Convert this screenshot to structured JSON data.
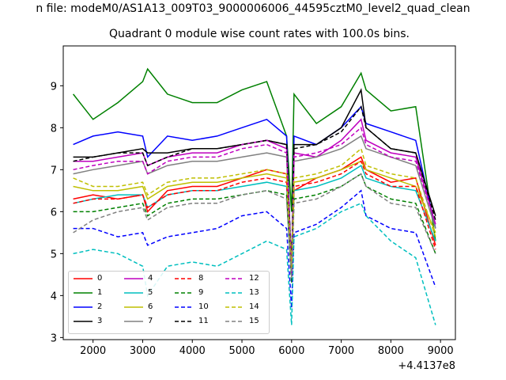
{
  "figure": {
    "suptitle": "n file: modeM0/AS1A13_009T03_9000006006_44595cztM0_level2_quad_clean",
    "title": "Quadrant 0 module wise count rates with 100.0s bins."
  },
  "chart_data": {
    "type": "line",
    "title": "Quadrant 0 module wise count rates with 100.0s bins.",
    "xlabel": "",
    "ylabel": "",
    "x_offset_label": "+4.4137e8",
    "xlim": [
      1400,
      9300
    ],
    "ylim": [
      2.95,
      9.95
    ],
    "xticks": [
      2000,
      3000,
      4000,
      5000,
      6000,
      7000,
      8000,
      9000
    ],
    "yticks": [
      3,
      4,
      5,
      6,
      7,
      8,
      9
    ],
    "x": [
      1600,
      2000,
      2500,
      3000,
      3100,
      3500,
      4000,
      4500,
      5000,
      5500,
      5900,
      6000,
      6050,
      6500,
      7000,
      7400,
      7500,
      8000,
      8500,
      8900
    ],
    "legend_ncol": 4,
    "legend_loc": "lower left",
    "series": [
      {
        "name": "0",
        "color": "#ff0000",
        "dash": "solid",
        "values": [
          6.3,
          6.4,
          6.3,
          6.4,
          6.0,
          6.5,
          6.6,
          6.6,
          6.8,
          7.0,
          6.9,
          4.8,
          6.5,
          6.8,
          7.0,
          7.3,
          7.0,
          6.7,
          6.8,
          5.2
        ]
      },
      {
        "name": "1",
        "color": "#008000",
        "dash": "solid",
        "values": [
          8.8,
          8.2,
          8.6,
          9.1,
          9.4,
          8.8,
          8.6,
          8.6,
          8.9,
          9.1,
          7.8,
          6.0,
          8.8,
          8.1,
          8.5,
          9.3,
          8.9,
          8.4,
          8.5,
          5.3
        ]
      },
      {
        "name": "2",
        "color": "#0000ff",
        "dash": "solid",
        "values": [
          7.6,
          7.8,
          7.9,
          7.8,
          7.3,
          7.8,
          7.7,
          7.8,
          8.0,
          8.2,
          7.8,
          4.5,
          7.8,
          7.6,
          8.0,
          8.5,
          8.1,
          7.9,
          7.7,
          5.6
        ]
      },
      {
        "name": "3",
        "color": "#000000",
        "dash": "solid",
        "values": [
          7.3,
          7.3,
          7.4,
          7.5,
          7.4,
          7.4,
          7.5,
          7.5,
          7.6,
          7.7,
          7.6,
          4.6,
          7.6,
          7.6,
          8.0,
          8.9,
          8.0,
          7.5,
          7.4,
          5.9
        ]
      },
      {
        "name": "4",
        "color": "#bf00bf",
        "dash": "solid",
        "values": [
          7.2,
          7.2,
          7.3,
          7.4,
          7.1,
          7.3,
          7.4,
          7.4,
          7.6,
          7.7,
          7.5,
          4.5,
          7.4,
          7.3,
          7.7,
          8.2,
          7.7,
          7.4,
          7.3,
          5.7
        ]
      },
      {
        "name": "5",
        "color": "#00bfbf",
        "dash": "solid",
        "values": [
          6.2,
          6.3,
          6.4,
          6.4,
          6.1,
          6.4,
          6.5,
          6.5,
          6.6,
          6.7,
          6.6,
          4.6,
          6.5,
          6.6,
          6.8,
          7.1,
          6.8,
          6.6,
          6.5,
          5.3
        ]
      },
      {
        "name": "6",
        "color": "#bfbf00",
        "dash": "solid",
        "values": [
          6.6,
          6.5,
          6.5,
          6.6,
          6.3,
          6.6,
          6.7,
          6.7,
          6.8,
          6.9,
          6.8,
          4.7,
          6.7,
          6.8,
          7.0,
          7.2,
          7.0,
          6.8,
          6.6,
          5.5
        ]
      },
      {
        "name": "7",
        "color": "#808080",
        "dash": "solid",
        "values": [
          6.9,
          7.0,
          7.1,
          7.2,
          6.9,
          7.1,
          7.2,
          7.2,
          7.3,
          7.4,
          7.3,
          4.6,
          7.2,
          7.3,
          7.5,
          7.8,
          7.5,
          7.3,
          7.1,
          5.6
        ]
      },
      {
        "name": "8",
        "color": "#ff0000",
        "dash": "dashed",
        "values": [
          6.2,
          6.3,
          6.3,
          6.4,
          6.1,
          6.4,
          6.5,
          6.5,
          6.7,
          6.8,
          6.7,
          4.5,
          6.6,
          6.7,
          6.9,
          7.2,
          6.9,
          6.6,
          6.6,
          5.1
        ]
      },
      {
        "name": "9",
        "color": "#008000",
        "dash": "dashed",
        "values": [
          6.0,
          6.0,
          6.1,
          6.2,
          5.9,
          6.2,
          6.3,
          6.3,
          6.4,
          6.5,
          6.4,
          4.3,
          6.3,
          6.4,
          6.6,
          6.9,
          6.6,
          6.3,
          6.2,
          5.0
        ]
      },
      {
        "name": "10",
        "color": "#0000ff",
        "dash": "dashed",
        "values": [
          5.6,
          5.6,
          5.4,
          5.5,
          5.2,
          5.4,
          5.5,
          5.6,
          5.9,
          6.0,
          5.6,
          3.7,
          5.5,
          5.7,
          6.1,
          6.5,
          5.9,
          5.6,
          5.5,
          4.2
        ]
      },
      {
        "name": "11",
        "color": "#000000",
        "dash": "dashed",
        "values": [
          7.2,
          7.3,
          7.4,
          7.4,
          7.1,
          7.3,
          7.5,
          7.5,
          7.6,
          7.7,
          7.6,
          4.6,
          7.5,
          7.6,
          7.9,
          8.5,
          8.0,
          7.5,
          7.4,
          5.8
        ]
      },
      {
        "name": "12",
        "color": "#bf00bf",
        "dash": "dashed",
        "values": [
          7.0,
          7.1,
          7.2,
          7.2,
          6.9,
          7.2,
          7.3,
          7.3,
          7.5,
          7.6,
          7.4,
          4.5,
          7.3,
          7.4,
          7.6,
          8.0,
          7.6,
          7.3,
          7.2,
          5.7
        ]
      },
      {
        "name": "13",
        "color": "#00bfbf",
        "dash": "dashed",
        "values": [
          5.0,
          5.1,
          5.0,
          4.7,
          4.0,
          4.7,
          4.8,
          4.7,
          5.0,
          5.3,
          5.1,
          3.3,
          5.4,
          5.6,
          6.0,
          6.2,
          5.9,
          5.3,
          4.9,
          3.3
        ]
      },
      {
        "name": "14",
        "color": "#bfbf00",
        "dash": "dashed",
        "values": [
          6.8,
          6.6,
          6.6,
          6.7,
          6.4,
          6.7,
          6.8,
          6.8,
          6.9,
          7.0,
          6.9,
          4.6,
          6.8,
          6.9,
          7.1,
          7.5,
          7.1,
          6.9,
          6.8,
          5.4
        ]
      },
      {
        "name": "15",
        "color": "#808080",
        "dash": "dashed",
        "values": [
          5.5,
          5.8,
          6.0,
          6.1,
          5.8,
          6.1,
          6.2,
          6.2,
          6.4,
          6.5,
          6.3,
          4.4,
          6.2,
          6.3,
          6.6,
          6.9,
          6.6,
          6.2,
          6.1,
          5.0
        ]
      }
    ]
  }
}
